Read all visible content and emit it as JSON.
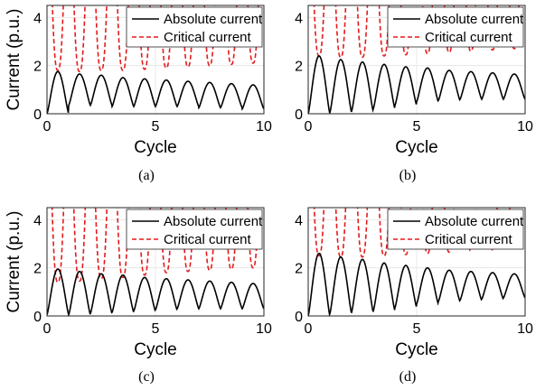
{
  "chart_data": [
    {
      "type": "line",
      "caption": "(a)",
      "xlabel": "Cycle",
      "ylabel": "Current (p.u.)",
      "xlim": [
        0,
        10
      ],
      "ylim": [
        0,
        4.5
      ],
      "xticks": [
        "0",
        "5",
        "10"
      ],
      "yticks": [
        "0",
        "2",
        "4"
      ],
      "grid": true,
      "legend_position": "top-right",
      "series": [
        {
          "name": "Absolute current",
          "color": "#000000",
          "dash": "solid",
          "peaks": [
            1.75,
            1.65,
            1.6,
            1.5,
            1.45,
            1.4,
            1.35,
            1.3,
            1.25,
            1.2
          ],
          "valleys": [
            0.0,
            0.35,
            0.35,
            0.3,
            0.3,
            0.3,
            0.3,
            0.25,
            0.25,
            0.2
          ]
        },
        {
          "name": "Critical current",
          "color": "#e41a1c",
          "dash": "dashed",
          "minima": [
            1.8,
            1.75,
            1.8,
            1.8,
            1.85,
            1.9,
            1.95,
            2.0,
            2.05,
            2.1
          ]
        }
      ]
    },
    {
      "type": "line",
      "caption": "(b)",
      "xlabel": "Cycle",
      "ylabel": "",
      "xlim": [
        0,
        10
      ],
      "ylim": [
        0,
        4.5
      ],
      "xticks": [
        "0",
        "5",
        "10"
      ],
      "yticks": [
        "0",
        "2",
        "4"
      ],
      "grid": true,
      "legend_position": "top-right",
      "series": [
        {
          "name": "Absolute current",
          "color": "#000000",
          "dash": "solid",
          "peaks": [
            2.4,
            2.25,
            2.15,
            2.05,
            1.95,
            1.9,
            1.8,
            1.75,
            1.7,
            1.65
          ],
          "valleys": [
            0.0,
            0.05,
            0.1,
            0.2,
            0.35,
            0.5,
            0.55,
            0.6,
            0.6,
            0.6
          ]
        },
        {
          "name": "Critical current",
          "color": "#e41a1c",
          "dash": "dashed",
          "minima": [
            2.4,
            2.35,
            2.35,
            2.4,
            2.45,
            2.5,
            2.55,
            2.6,
            2.65,
            2.7
          ]
        }
      ]
    },
    {
      "type": "line",
      "caption": "(c)",
      "xlabel": "Cycle",
      "ylabel": "Current (p.u.)",
      "xlim": [
        0,
        10
      ],
      "ylim": [
        0,
        4.5
      ],
      "xticks": [
        "0",
        "5",
        "10"
      ],
      "yticks": [
        "0",
        "2",
        "4"
      ],
      "grid": true,
      "legend_position": "top-right",
      "series": [
        {
          "name": "Absolute current",
          "color": "#000000",
          "dash": "solid",
          "peaks": [
            1.95,
            1.85,
            1.75,
            1.7,
            1.6,
            1.55,
            1.5,
            1.45,
            1.4,
            1.35
          ],
          "valleys": [
            0.05,
            0.05,
            0.1,
            0.15,
            0.2,
            0.25,
            0.3,
            0.3,
            0.3,
            0.3
          ]
        },
        {
          "name": "Critical current",
          "color": "#e41a1c",
          "dash": "dashed",
          "minima": [
            1.4,
            1.45,
            1.55,
            1.6,
            1.7,
            1.8,
            1.85,
            1.9,
            1.95,
            2.0
          ]
        }
      ]
    },
    {
      "type": "line",
      "caption": "(d)",
      "xlabel": "Cycle",
      "ylabel": "",
      "xlim": [
        0,
        10
      ],
      "ylim": [
        0,
        4.5
      ],
      "xticks": [
        "0",
        "5",
        "10"
      ],
      "yticks": [
        "0",
        "2",
        "4"
      ],
      "grid": true,
      "legend_position": "top-right",
      "series": [
        {
          "name": "Absolute current",
          "color": "#000000",
          "dash": "solid",
          "peaks": [
            2.6,
            2.45,
            2.35,
            2.2,
            2.1,
            2.0,
            1.9,
            1.85,
            1.8,
            1.75
          ],
          "valleys": [
            0.0,
            0.1,
            0.15,
            0.2,
            0.35,
            0.5,
            0.6,
            0.65,
            0.7,
            0.75
          ]
        },
        {
          "name": "Critical current",
          "color": "#e41a1c",
          "dash": "dashed",
          "minima": [
            2.5,
            2.45,
            2.45,
            2.5,
            2.55,
            2.6,
            2.65,
            2.7,
            2.75,
            2.8
          ]
        }
      ]
    }
  ]
}
